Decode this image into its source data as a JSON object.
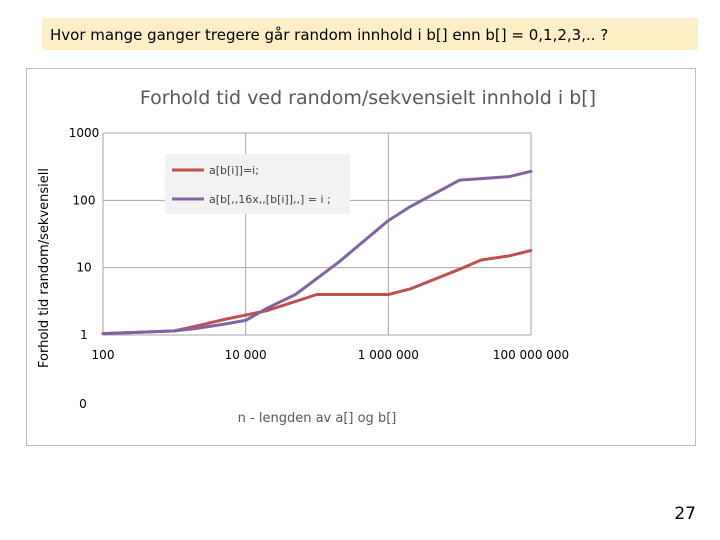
{
  "slide": {
    "title": "Hvor mange ganger tregere går random innhold i b[] enn b[] =  0,1,2,3,.. ?",
    "page_number": "27"
  },
  "chart_data": {
    "type": "line",
    "title": "Forhold tid ved random/sekvensielt  innhold i b[]",
    "xlabel": "n - lengden av a[] og b[]",
    "ylabel": "Forhold tid random/sekvensiell",
    "xscale": "log",
    "yscale": "log",
    "xlim": [
      100,
      100000000
    ],
    "ylim": [
      1,
      1000
    ],
    "x_ticks": [
      {
        "value": 100,
        "label": "100"
      },
      {
        "value": 10000,
        "label": "10 000"
      },
      {
        "value": 1000000,
        "label": "1 000 000"
      },
      {
        "value": 100000000,
        "label": "100 000 000"
      }
    ],
    "y_ticks": [
      {
        "value": 1000,
        "label": "1000"
      },
      {
        "value": 100,
        "label": "100"
      },
      {
        "value": 10,
        "label": "10"
      },
      {
        "value": 1,
        "label": "1"
      }
    ],
    "extra_y_label": "0",
    "grid": true,
    "legend_position": "top-center",
    "series": [
      {
        "name": "a[b[i]]=i;",
        "color": "#c0504d",
        "x": [
          100,
          1000,
          2000,
          5000,
          20000,
          100000,
          200000,
          1000000,
          2000000,
          10000000,
          20000000,
          50000000,
          100000000
        ],
        "y": [
          1.05,
          1.15,
          1.35,
          1.7,
          2.3,
          4.0,
          4.0,
          4.0,
          4.8,
          9.5,
          13.0,
          15.0,
          18.0
        ]
      },
      {
        "name": "a[b[,,16x,,[b[i]],,] = i ;",
        "color": "#8064a2",
        "x": [
          100,
          1000,
          2000,
          5000,
          10000,
          20000,
          50000,
          200000,
          1000000,
          2000000,
          10000000,
          20000000,
          50000000,
          100000000
        ],
        "y": [
          1.05,
          1.15,
          1.25,
          1.45,
          1.65,
          2.5,
          4.0,
          12.0,
          50.0,
          80.0,
          200.0,
          210.0,
          225.0,
          270.0
        ]
      }
    ]
  }
}
